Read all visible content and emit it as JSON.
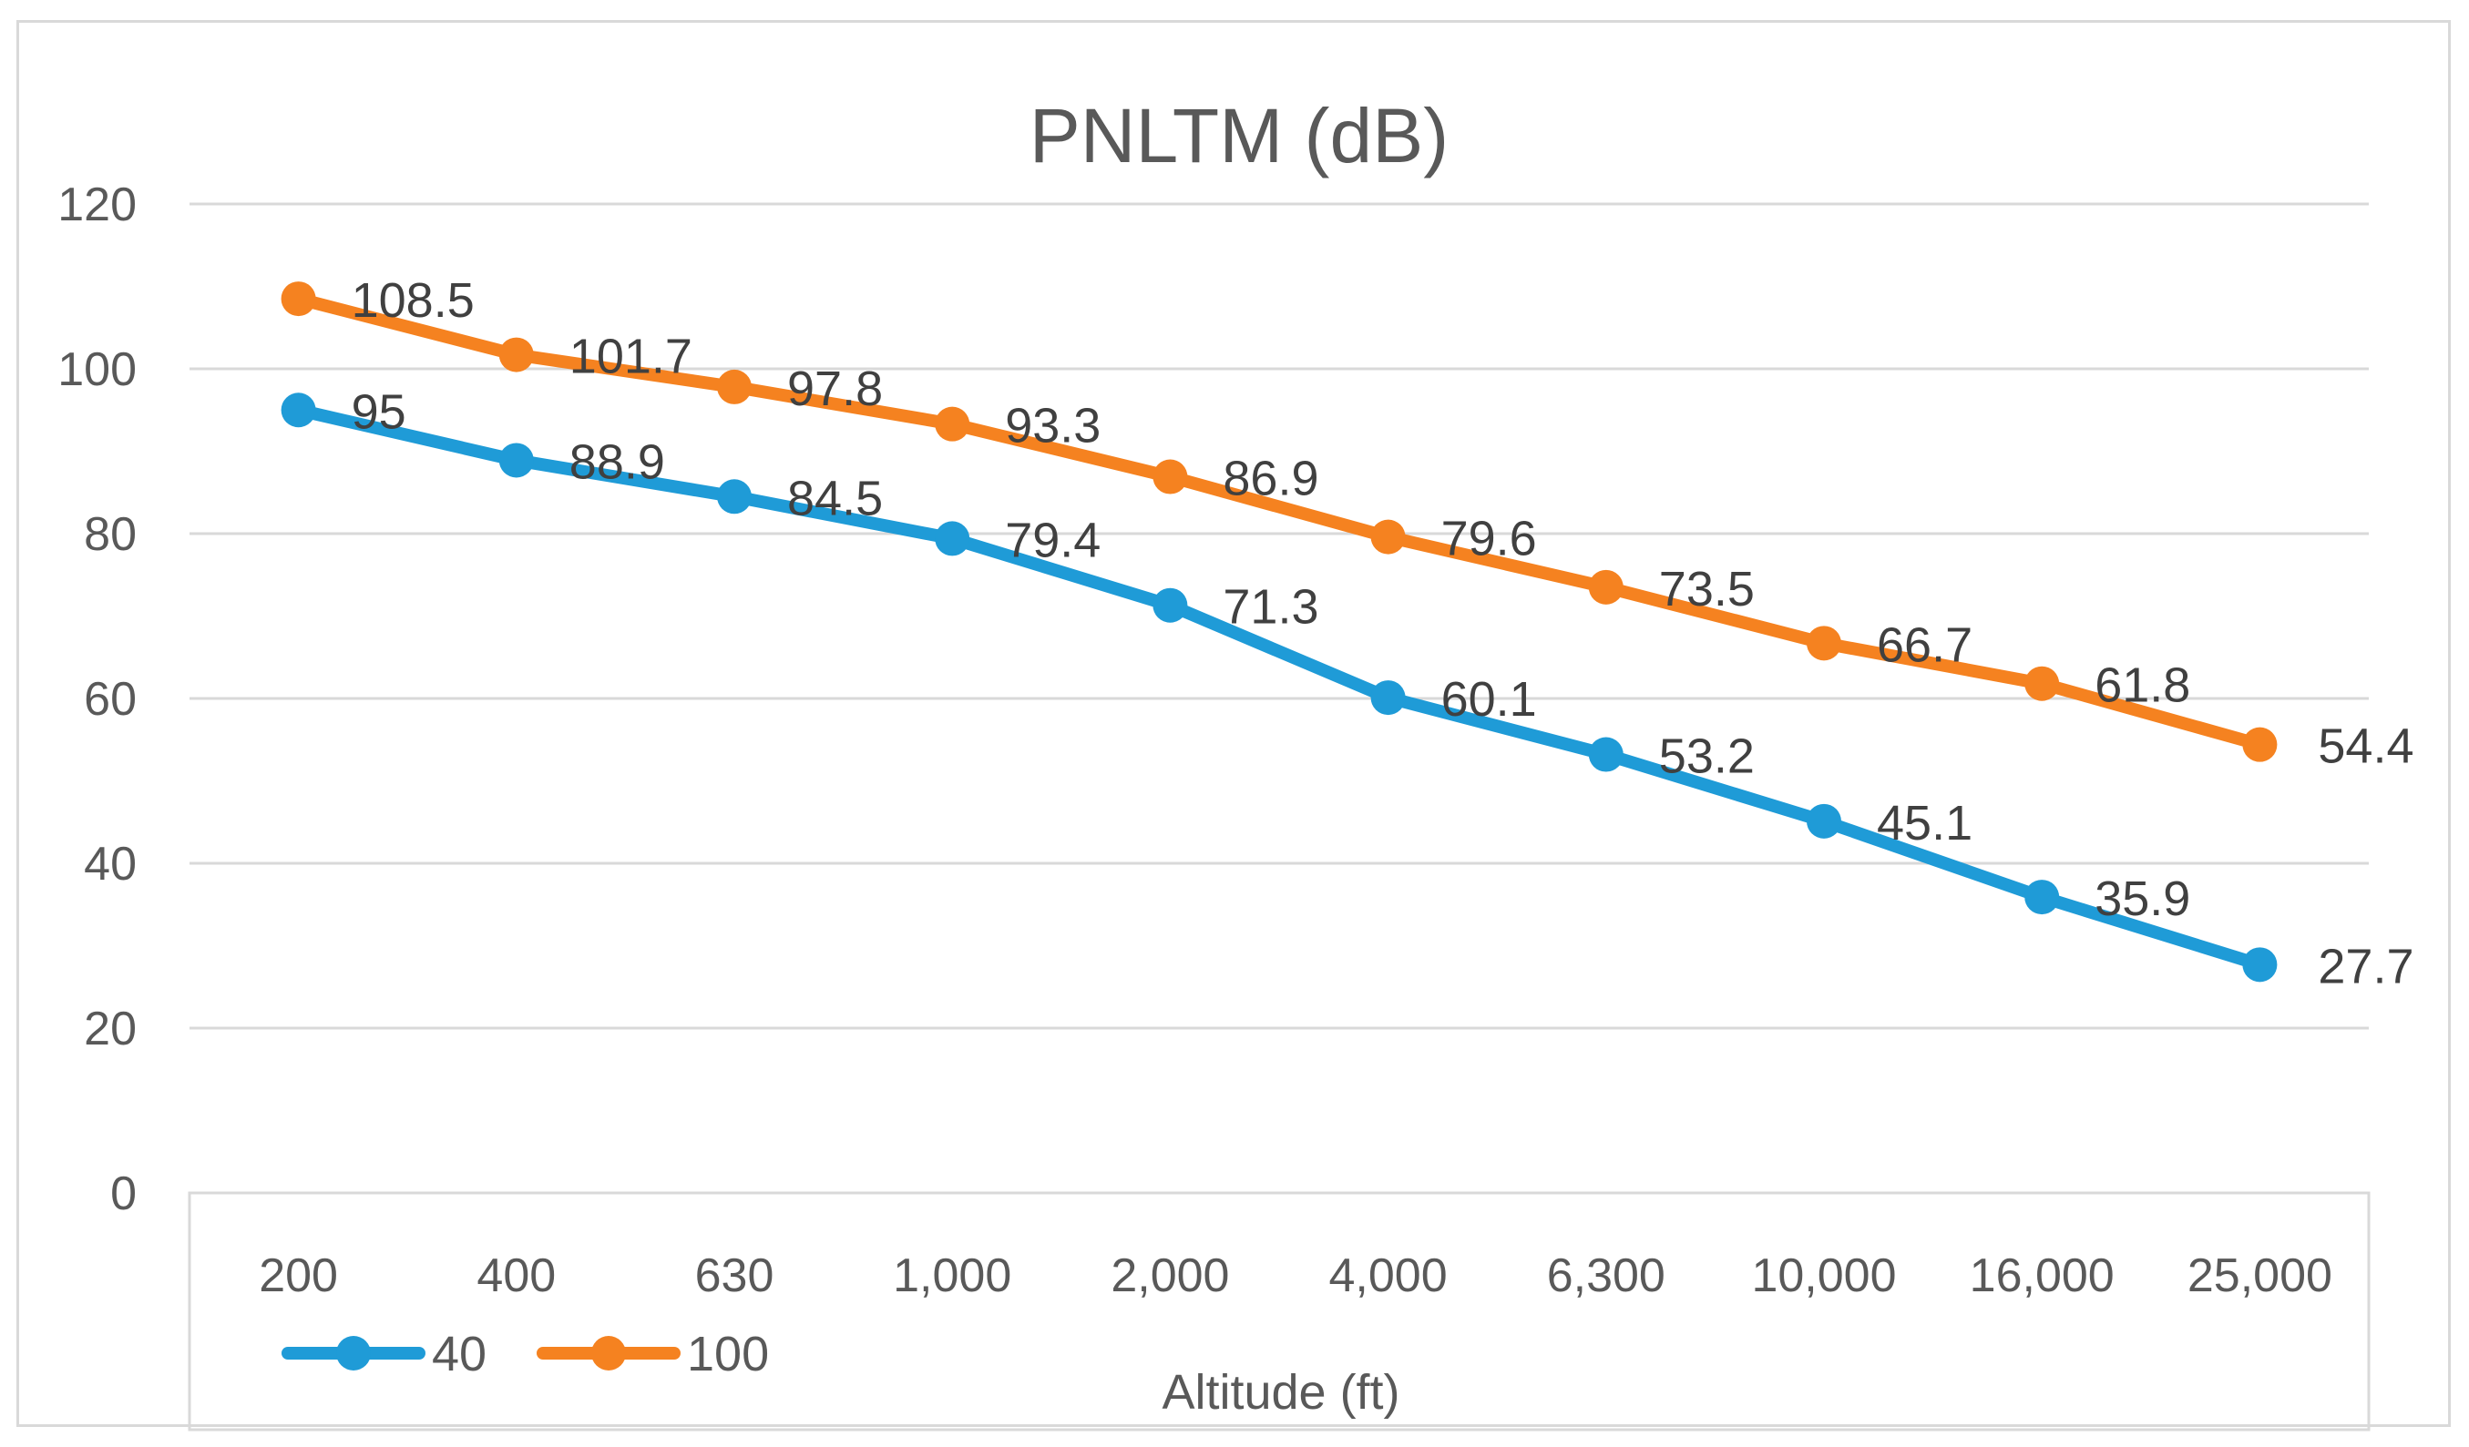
{
  "chart_data": {
    "type": "line",
    "title": "PNLTM (dB)",
    "xlabel": "Altitude (ft)",
    "ylabel": "",
    "categories": [
      "200",
      "400",
      "630",
      "1,000",
      "2,000",
      "4,000",
      "6,300",
      "10,000",
      "16,000",
      "25,000"
    ],
    "ylim": [
      0,
      120
    ],
    "yticks": [
      0,
      20,
      40,
      60,
      80,
      100,
      120
    ],
    "grid": true,
    "legend_position": "bottom-left",
    "series": [
      {
        "name": "40",
        "color": "#1f9bd7",
        "values": [
          95,
          88.9,
          84.5,
          79.4,
          71.3,
          60.1,
          53.2,
          45.1,
          35.9,
          27.7
        ]
      },
      {
        "name": "100",
        "color": "#f58220",
        "values": [
          108.5,
          101.7,
          97.8,
          93.3,
          86.9,
          79.6,
          73.5,
          66.7,
          61.8,
          54.4
        ]
      }
    ]
  }
}
